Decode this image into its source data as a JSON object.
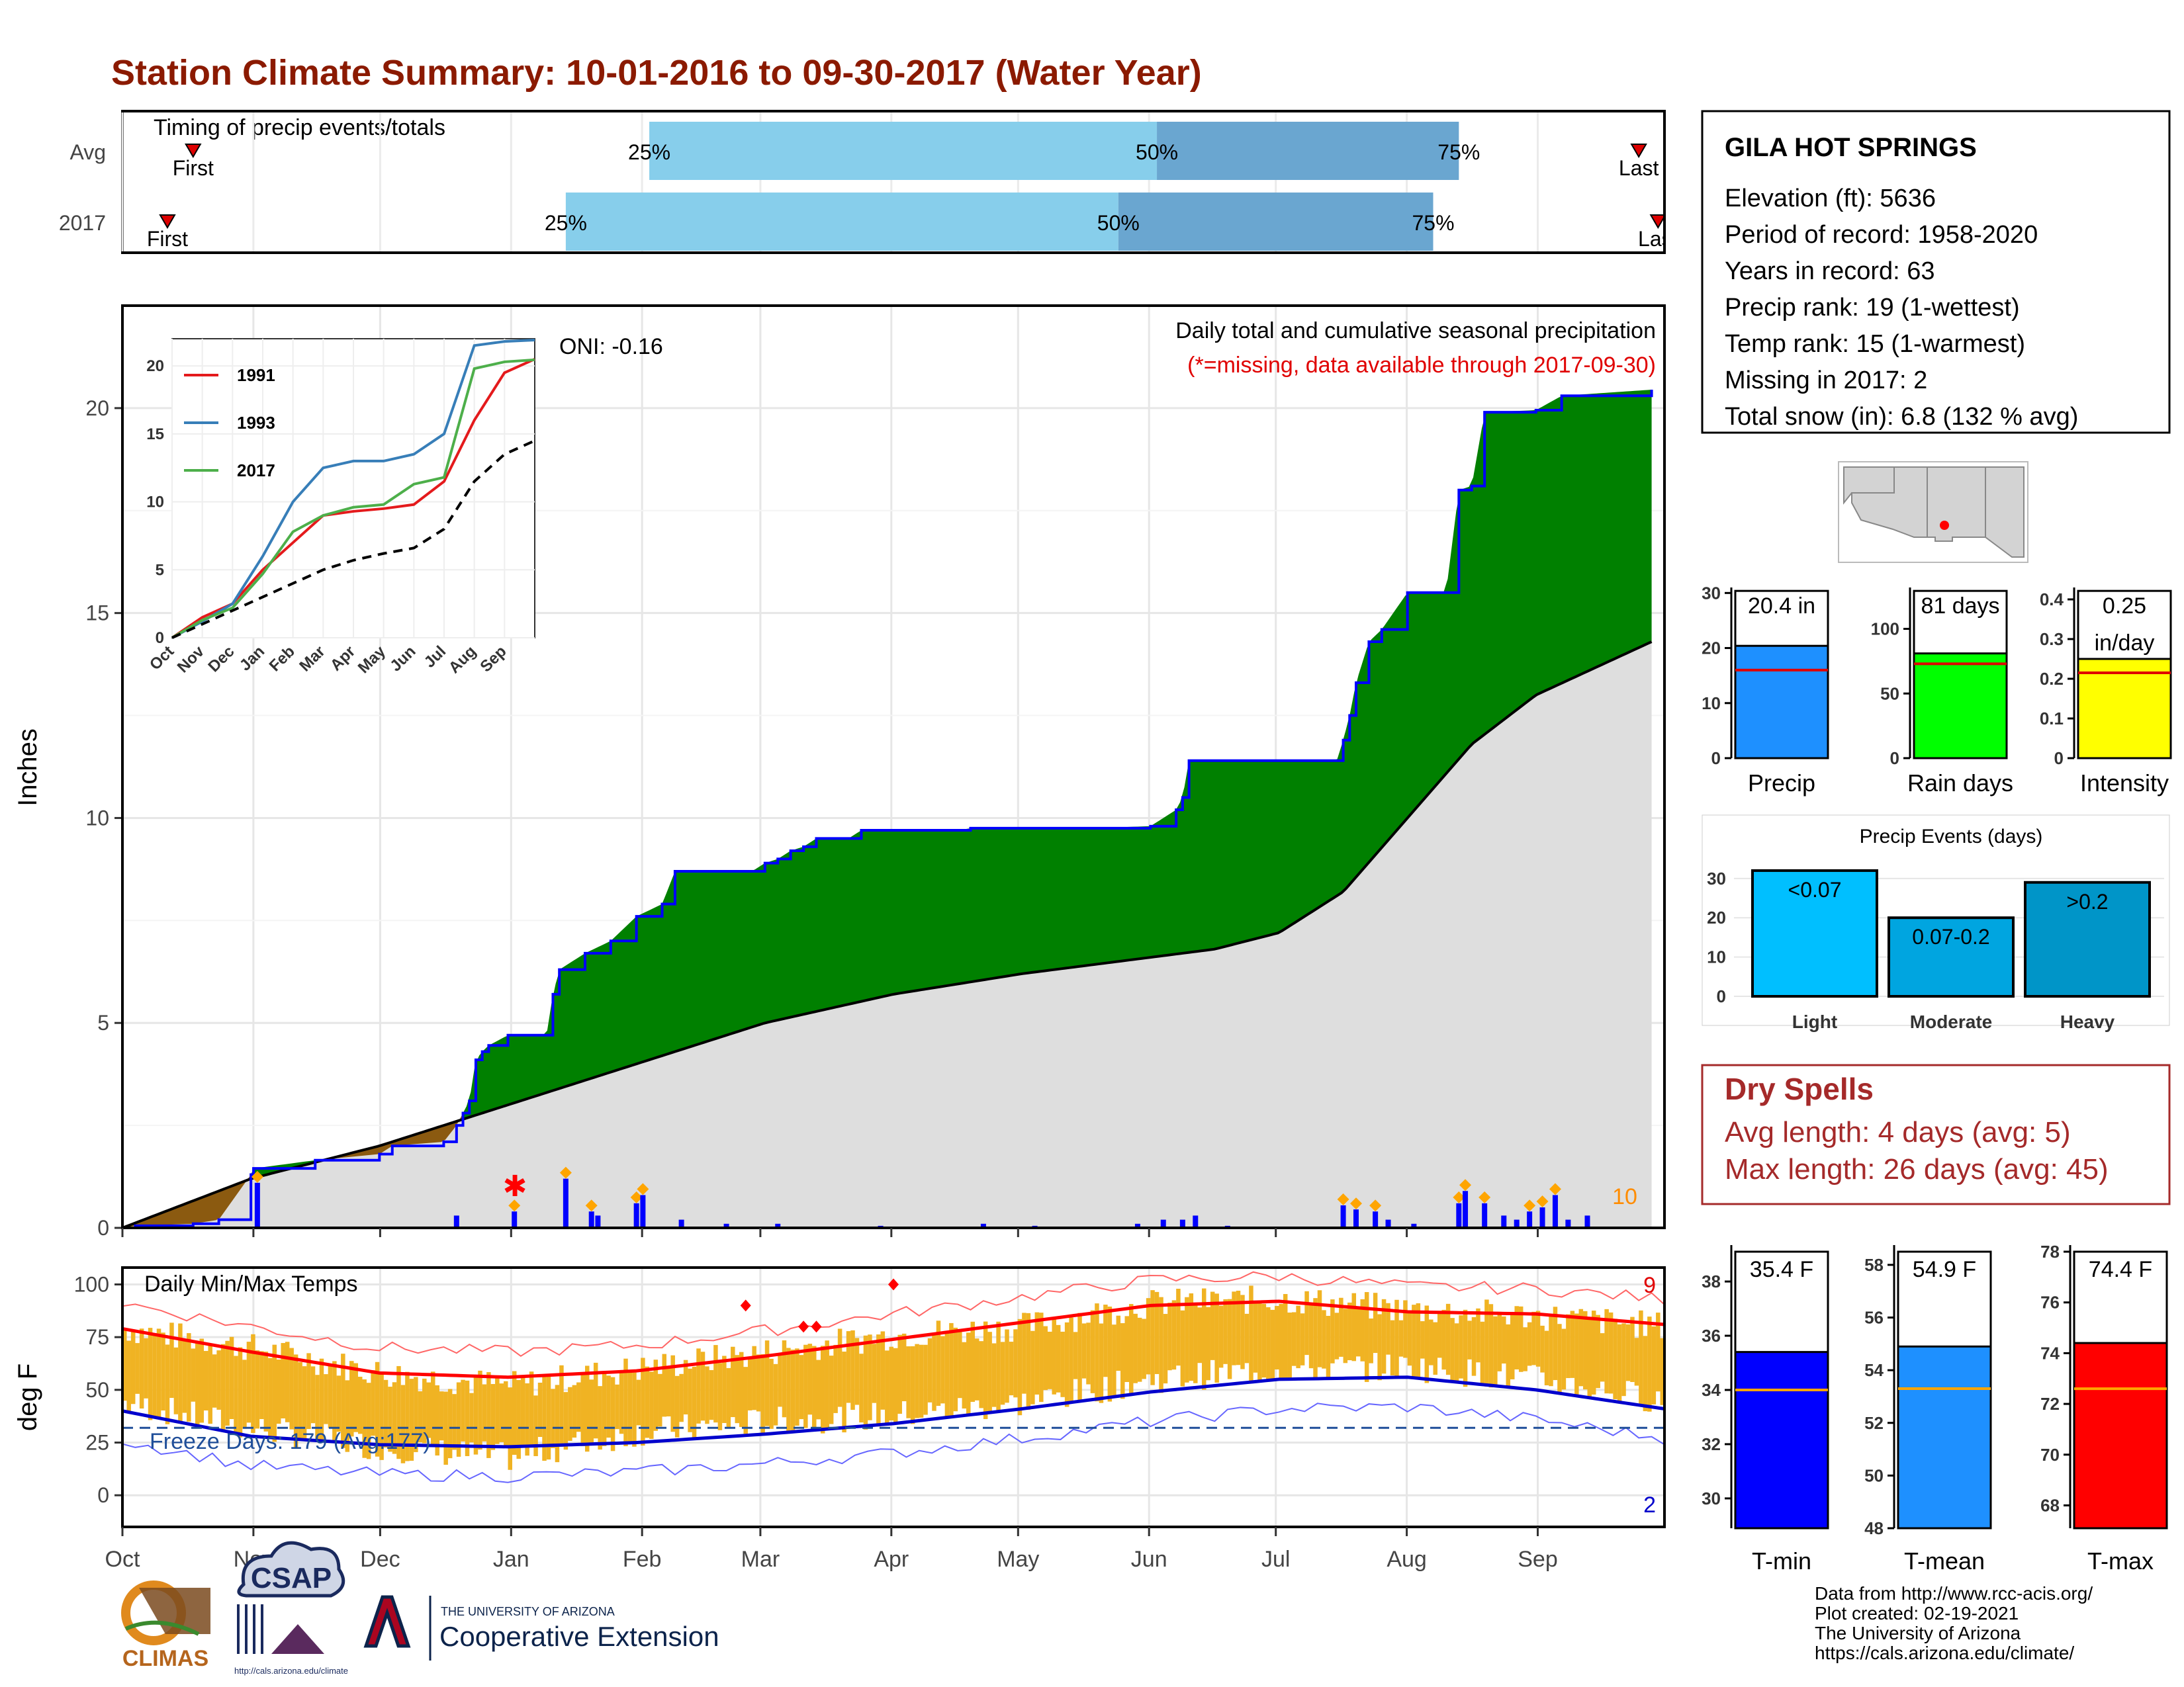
{
  "title": "Station Climate Summary: 10-01-2016 to 09-30-2017 (Water Year)",
  "timing": {
    "caption": "Timing of precip events/totals",
    "rows": [
      {
        "label": "Avg",
        "first": "First",
        "last": "Last",
        "p25": "25%",
        "p50": "50%",
        "p75": "75%",
        "first_month": 0.55,
        "p25_month": 4.1,
        "p50_month": 8.05,
        "p75_month": 10.4,
        "last_month": 11.8
      },
      {
        "label": "2017",
        "first": "First",
        "last": "Last",
        "p25": "25%",
        "p50": "50%",
        "p75": "75%",
        "first_month": 0.35,
        "p25_month": 3.45,
        "p50_month": 7.75,
        "p75_month": 10.2,
        "last_month": 11.95
      }
    ]
  },
  "main": {
    "ylabel": "Inches",
    "oni": "ONI: -0.16",
    "desc": "Daily total and cumulative seasonal precipitation",
    "missing_note": "(*=missing, data available through 2017-09-30)",
    "count_label": "10"
  },
  "temps": {
    "ylabel": "deg F",
    "caption": "Daily Min/Max Temps",
    "freeze": "Freeze Days: 179 (Avg:177)",
    "count_top": "9",
    "count_bottom": "2",
    "freeze_line": 32
  },
  "months": [
    "Oct",
    "Nov",
    "Dec",
    "Jan",
    "Feb",
    "Mar",
    "Apr",
    "May",
    "Jun",
    "Jul",
    "Aug",
    "Sep"
  ],
  "inset": {
    "legend": [
      "1991",
      "1993",
      "2017"
    ],
    "months": [
      "Oct",
      "Nov",
      "Dec",
      "Jan",
      "Feb",
      "Mar",
      "Apr",
      "May",
      "Jun",
      "Jul",
      "Aug",
      "Sep"
    ]
  },
  "station": {
    "name": "GILA HOT SPRINGS",
    "lines": [
      "Elevation (ft): 5636",
      "Period of record: 1958-2020",
      "Years in record: 63",
      "Precip rank: 19 (1-wettest)",
      "Temp rank: 15 (1-warmest)",
      "Missing in 2017: 2",
      "Total snow (in): 6.8 (132 % avg)"
    ]
  },
  "mini_bars": [
    {
      "label": "Precip",
      "value_text": "20.4 in",
      "value": 20.4,
      "avg": 16,
      "ymax": 31,
      "ticks": [
        0,
        10,
        20,
        30
      ],
      "color": "#1e90ff"
    },
    {
      "label": "Rain days",
      "value_text": "81 days",
      "value": 81,
      "avg": 73,
      "ymax": 132,
      "ticks": [
        0,
        50,
        100
      ],
      "color": "#00ff00"
    },
    {
      "label": "Intensity",
      "value_text": "0.25",
      "value_text2": "in/day",
      "value": 0.25,
      "avg": 0.215,
      "ymax": 0.43,
      "ticks": [
        0.0,
        0.1,
        0.2,
        0.3,
        0.4
      ],
      "color": "#ffff00"
    }
  ],
  "precip_events": {
    "title": "Precip Events (days)",
    "categories": [
      "Light",
      "Moderate",
      "Heavy"
    ],
    "labels": [
      "<0.07",
      "0.07-0.2",
      ">0.2"
    ],
    "values": [
      32,
      20,
      29
    ],
    "colors": [
      "#00bfff",
      "#00a5e0",
      "#0095c8"
    ],
    "ticks": [
      0,
      10,
      20,
      30
    ]
  },
  "dry_spells": {
    "title": "Dry Spells",
    "avg": "Avg length: 4 days (avg: 5)",
    "max": "Max length: 26 days (avg: 45)"
  },
  "temp_bars": [
    {
      "label": "T-min",
      "value_text": "35.4 F",
      "value": 35.4,
      "avg": 34.0,
      "ymin": 28.9,
      "ymax": 39.1,
      "ticks": [
        30,
        32,
        34,
        36,
        38
      ],
      "color": "#0000ff"
    },
    {
      "label": "T-mean",
      "value_text": "54.9 F",
      "value": 54.9,
      "avg": 53.3,
      "ymin": 48.0,
      "ymax": 58.5,
      "ticks": [
        48,
        50,
        52,
        54,
        56,
        58
      ],
      "color": "#1e90ff"
    },
    {
      "label": "T-max",
      "value_text": "74.4 F",
      "value": 74.4,
      "avg": 72.6,
      "ymin": 67.1,
      "ymax": 78.0,
      "ticks": [
        68,
        70,
        72,
        74,
        76,
        78
      ],
      "color": "#ff0000"
    }
  ],
  "footer": {
    "logos": {
      "climas": "CLIMAS",
      "csap": "CSAP",
      "csap_url": "http://cals.arizona.edu/climate",
      "ua_small": "THE UNIVERSITY OF ARIZONA",
      "ua_big": "Cooperative Extension"
    },
    "credits": [
      "Data from http://www.rcc-acis.org/",
      "Plot created: 02-19-2021",
      "The University of Arizona",
      "https://cals.arizona.edu/climate/"
    ]
  },
  "chart_data": [
    {
      "type": "area",
      "title": "Daily total and cumulative seasonal precipitation",
      "ylabel": "Inches",
      "ylim": [
        0,
        22.5
      ],
      "x_unit": "month index from Oct 1 2016",
      "series": [
        {
          "name": "2017",
          "x": [
            0,
            0.1,
            0.55,
            0.75,
            1.0,
            1.02,
            1.5,
            2.0,
            2.1,
            2.5,
            2.6,
            2.65,
            2.7,
            2.75,
            2.8,
            2.85,
            3.0,
            3.3,
            3.35,
            3.4,
            3.6,
            3.8,
            4.0,
            4.2,
            4.3,
            4.9,
            5.0,
            5.1,
            5.2,
            5.3,
            5.4,
            5.65,
            5.75,
            6.0,
            6.5,
            6.6,
            7.5,
            8.0,
            8.2,
            8.25,
            8.3,
            8.9,
            9.45,
            9.5,
            9.55,
            9.6,
            9.7,
            9.8,
            10.0,
            10.3,
            10.4,
            10.5,
            10.6,
            11.0,
            11.2,
            11.9
          ],
          "values": [
            0,
            0.05,
            0.1,
            0.2,
            1.3,
            1.45,
            1.65,
            1.8,
            2.0,
            2.1,
            2.5,
            2.8,
            3.1,
            4.1,
            4.3,
            4.45,
            4.7,
            4.7,
            5.7,
            6.3,
            6.7,
            7.0,
            7.6,
            7.9,
            8.7,
            8.7,
            8.9,
            9.0,
            9.2,
            9.3,
            9.5,
            9.5,
            9.7,
            9.7,
            9.7,
            9.75,
            9.75,
            9.8,
            10.2,
            10.5,
            11.4,
            11.4,
            11.4,
            11.9,
            12.5,
            13.3,
            14.3,
            14.6,
            15.5,
            15.5,
            18.0,
            18.1,
            19.9,
            19.95,
            20.3,
            20.45
          ]
        },
        {
          "name": "Avg",
          "x": [
            0,
            1,
            2,
            3,
            4,
            5,
            6,
            7,
            8,
            8.5,
            9,
            9.5,
            10,
            10.5,
            11,
            11.9
          ],
          "values": [
            0,
            1.2,
            2.0,
            3.0,
            4.0,
            5.0,
            5.7,
            6.2,
            6.6,
            6.8,
            7.2,
            8.2,
            10.0,
            11.8,
            13.0,
            14.3
          ]
        }
      ],
      "daily_precip_bars": {
        "x": [
          1.05,
          2.6,
          3.05,
          3.45,
          3.65,
          3.7,
          4.0,
          4.05,
          4.35,
          4.7,
          5.1,
          5.9,
          6.7,
          7.1,
          7.9,
          8.1,
          8.25,
          8.35,
          8.6,
          9.5,
          9.6,
          9.75,
          9.85,
          10.05,
          10.4,
          10.45,
          10.6,
          10.75,
          10.85,
          10.95,
          11.05,
          11.15,
          11.25,
          11.4
        ],
        "values": [
          1.1,
          0.3,
          0.4,
          1.2,
          0.4,
          0.3,
          0.6,
          0.8,
          0.2,
          0.1,
          0.1,
          0.05,
          0.1,
          0.05,
          0.1,
          0.2,
          0.2,
          0.3,
          0.05,
          0.55,
          0.45,
          0.4,
          0.2,
          0.1,
          0.6,
          0.9,
          0.6,
          0.3,
          0.2,
          0.4,
          0.5,
          0.8,
          0.2,
          0.3
        ]
      }
    },
    {
      "type": "line",
      "title": "Daily Min/Max Temps",
      "ylabel": "deg F",
      "ylim": [
        -15,
        108
      ],
      "x": [
        0,
        1,
        2,
        3,
        4,
        5,
        6,
        7,
        8,
        9,
        10,
        11,
        12
      ],
      "series": [
        {
          "name": "Avg max",
          "values": [
            79,
            68,
            58,
            56,
            59,
            66,
            74,
            82,
            90,
            92,
            87,
            86,
            81
          ]
        },
        {
          "name": "Avg min",
          "values": [
            40,
            28,
            24,
            23,
            25,
            29,
            34,
            41,
            49,
            55,
            56,
            50,
            41
          ]
        },
        {
          "name": "Daily max",
          "values": [
            79,
            70,
            58,
            52,
            60,
            68,
            76,
            80,
            91,
            93,
            88,
            85,
            80
          ]
        },
        {
          "name": "Daily min",
          "values": [
            36,
            24,
            15,
            10,
            22,
            27,
            30,
            36,
            47,
            52,
            53,
            47,
            37
          ]
        }
      ]
    },
    {
      "type": "line",
      "title": "",
      "ylim": [
        0,
        22
      ],
      "x": [
        "Oct",
        "Nov",
        "Dec",
        "Jan",
        "Feb",
        "Mar",
        "Apr",
        "May",
        "Jun",
        "Jul",
        "Aug",
        "Sep",
        "Oct"
      ],
      "series": [
        {
          "name": "1991",
          "values": [
            0,
            1.5,
            2.5,
            5,
            7,
            9,
            9.3,
            9.5,
            9.8,
            11.5,
            16,
            19.5,
            20.5
          ]
        },
        {
          "name": "1993",
          "values": [
            0,
            1.2,
            2.5,
            6,
            10,
            12.5,
            13,
            13,
            13.5,
            15,
            21.5,
            21.8,
            21.9
          ]
        },
        {
          "name": "2017",
          "values": [
            0,
            1.3,
            2.2,
            4.7,
            7.8,
            9.0,
            9.6,
            9.8,
            11.3,
            11.8,
            19.8,
            20.3,
            20.45
          ]
        },
        {
          "name": "Avg",
          "values": [
            0,
            1.0,
            2.0,
            3.0,
            4.0,
            5.0,
            5.7,
            6.2,
            6.6,
            8.0,
            11.5,
            13.5,
            14.5
          ]
        }
      ]
    },
    {
      "type": "bar",
      "title": "Precip Events (days)",
      "categories": [
        "Light",
        "Moderate",
        "Heavy"
      ],
      "values": [
        32,
        20,
        29
      ]
    }
  ]
}
